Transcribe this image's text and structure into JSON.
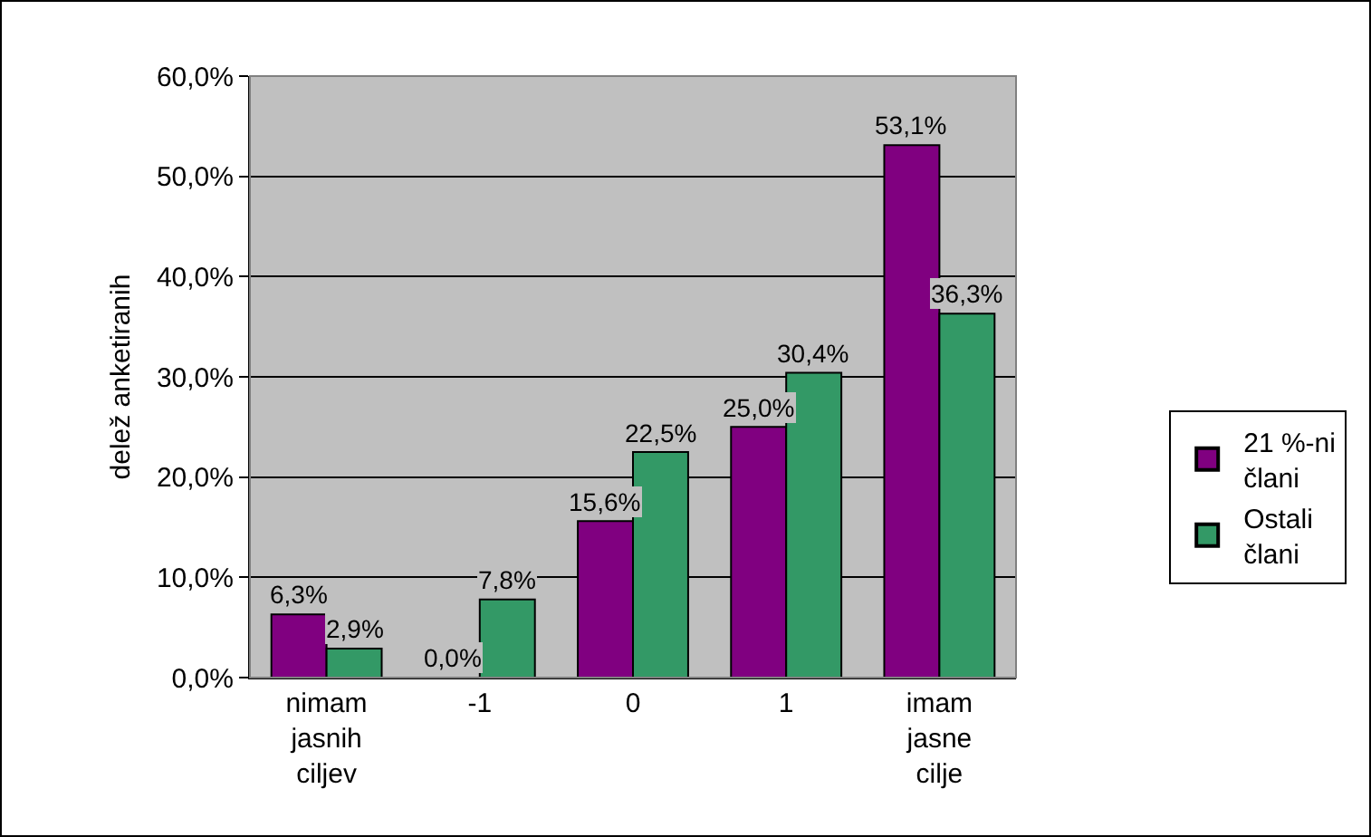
{
  "chart_data": {
    "type": "bar",
    "ylabel": "delež anketiranih",
    "categories": [
      "nimam jasnih ciljev",
      "-1",
      "0",
      "1",
      "imam jasne cilje"
    ],
    "series": [
      {
        "name": "21 %-ni člani",
        "color": "#800080",
        "values": [
          6.3,
          0,
          15.6,
          25,
          53.1
        ],
        "value_labels": [
          "6,3%",
          "0,0%",
          "15,6%",
          "25,0%",
          "53,1%"
        ]
      },
      {
        "name": "Ostali člani",
        "color": "#339966",
        "values": [
          2.9,
          7.8,
          22.5,
          30.4,
          36.3
        ],
        "value_labels": [
          "2,9%",
          "7,8%",
          "22,5%",
          "30,4%",
          "36,3%"
        ]
      }
    ],
    "ylim": [
      0,
      60
    ],
    "yticks": [
      {
        "value": 0,
        "label": "0,0%"
      },
      {
        "value": 10,
        "label": "10,0%"
      },
      {
        "value": 20,
        "label": "20,0%"
      },
      {
        "value": 30,
        "label": "30,0%"
      },
      {
        "value": 40,
        "label": "40,0%"
      },
      {
        "value": 50,
        "label": "50,0%"
      },
      {
        "value": 60,
        "label": "60,0%"
      }
    ],
    "grid": "y",
    "legend": "right"
  }
}
